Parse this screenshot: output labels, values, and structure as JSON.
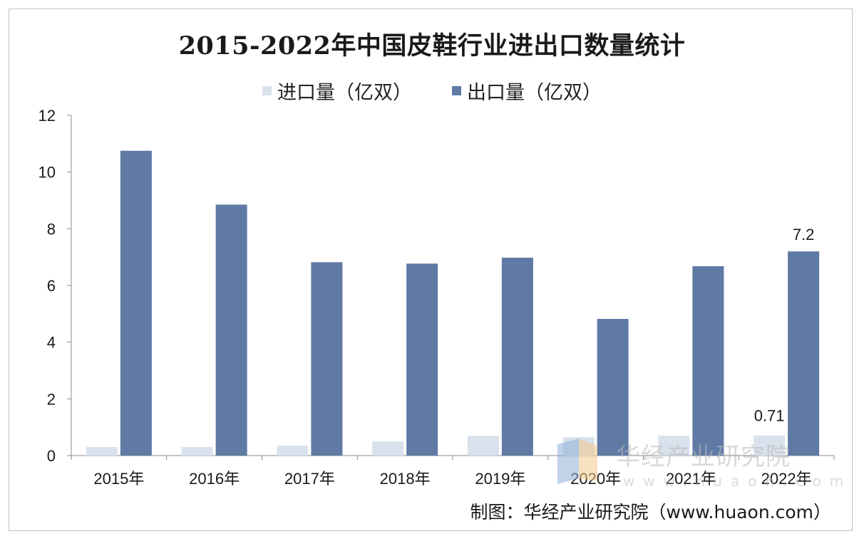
{
  "chart_data": {
    "type": "bar",
    "title": "2015-2022年中国皮鞋行业进出口数量统计",
    "categories": [
      "2015年",
      "2016年",
      "2017年",
      "2018年",
      "2019年",
      "2020年",
      "2021年",
      "2022年"
    ],
    "series": [
      {
        "name": "进口量（亿双）",
        "color": "#d9e1ec",
        "values": [
          0.3,
          0.3,
          0.35,
          0.5,
          0.7,
          0.65,
          0.7,
          0.71
        ]
      },
      {
        "name": "出口量（亿双）",
        "color": "#5f7aa5",
        "values": [
          10.75,
          8.85,
          6.82,
          6.77,
          6.98,
          4.82,
          6.68,
          7.2
        ]
      }
    ],
    "data_labels": [
      {
        "series": 0,
        "index": 7,
        "text": "0.71"
      },
      {
        "series": 1,
        "index": 7,
        "text": "7.2"
      }
    ],
    "ylim": [
      0,
      12
    ],
    "yticks": [
      "0",
      "2",
      "4",
      "6",
      "8",
      "10",
      "12"
    ],
    "xlabel": "",
    "ylabel": "",
    "grid": false,
    "legend_position": "top"
  },
  "source": "制图：华经产业研究院（www.huaon.com）",
  "watermark": {
    "text": "华经产业研究院",
    "subtext": "www.huaon.com"
  }
}
